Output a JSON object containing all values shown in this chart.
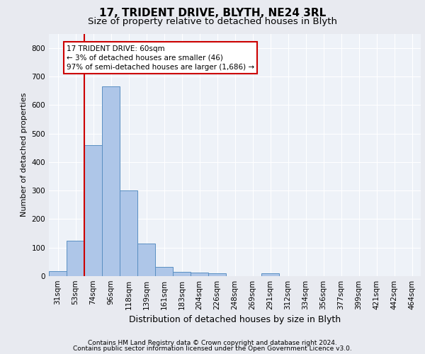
{
  "title1": "17, TRIDENT DRIVE, BLYTH, NE24 3RL",
  "title2": "Size of property relative to detached houses in Blyth",
  "xlabel": "Distribution of detached houses by size in Blyth",
  "ylabel": "Number of detached properties",
  "footer1": "Contains HM Land Registry data © Crown copyright and database right 2024.",
  "footer2": "Contains public sector information licensed under the Open Government Licence v3.0.",
  "categories": [
    "31sqm",
    "53sqm",
    "74sqm",
    "96sqm",
    "118sqm",
    "139sqm",
    "161sqm",
    "183sqm",
    "204sqm",
    "226sqm",
    "248sqm",
    "269sqm",
    "291sqm",
    "312sqm",
    "334sqm",
    "356sqm",
    "377sqm",
    "399sqm",
    "421sqm",
    "442sqm",
    "464sqm"
  ],
  "values": [
    18,
    125,
    460,
    665,
    300,
    115,
    33,
    15,
    13,
    10,
    0,
    0,
    10,
    0,
    0,
    0,
    0,
    0,
    0,
    0,
    0
  ],
  "bar_color": "#aec6e8",
  "bar_edge_color": "#5a8fc2",
  "vline_x": 1.5,
  "vline_color": "#cc0000",
  "annotation_text": "17 TRIDENT DRIVE: 60sqm\n← 3% of detached houses are smaller (46)\n97% of semi-detached houses are larger (1,686) →",
  "annotation_box_color": "#ffffff",
  "annotation_box_edge": "#cc0000",
  "ylim": [
    0,
    850
  ],
  "yticks": [
    0,
    100,
    200,
    300,
    400,
    500,
    600,
    700,
    800
  ],
  "bg_color": "#e8eaf0",
  "axes_bg_color": "#eef2f8",
  "grid_color": "#ffffff",
  "title1_fontsize": 11,
  "title2_fontsize": 9.5,
  "xlabel_fontsize": 9,
  "ylabel_fontsize": 8,
  "tick_fontsize": 7.5,
  "footer_fontsize": 6.5
}
